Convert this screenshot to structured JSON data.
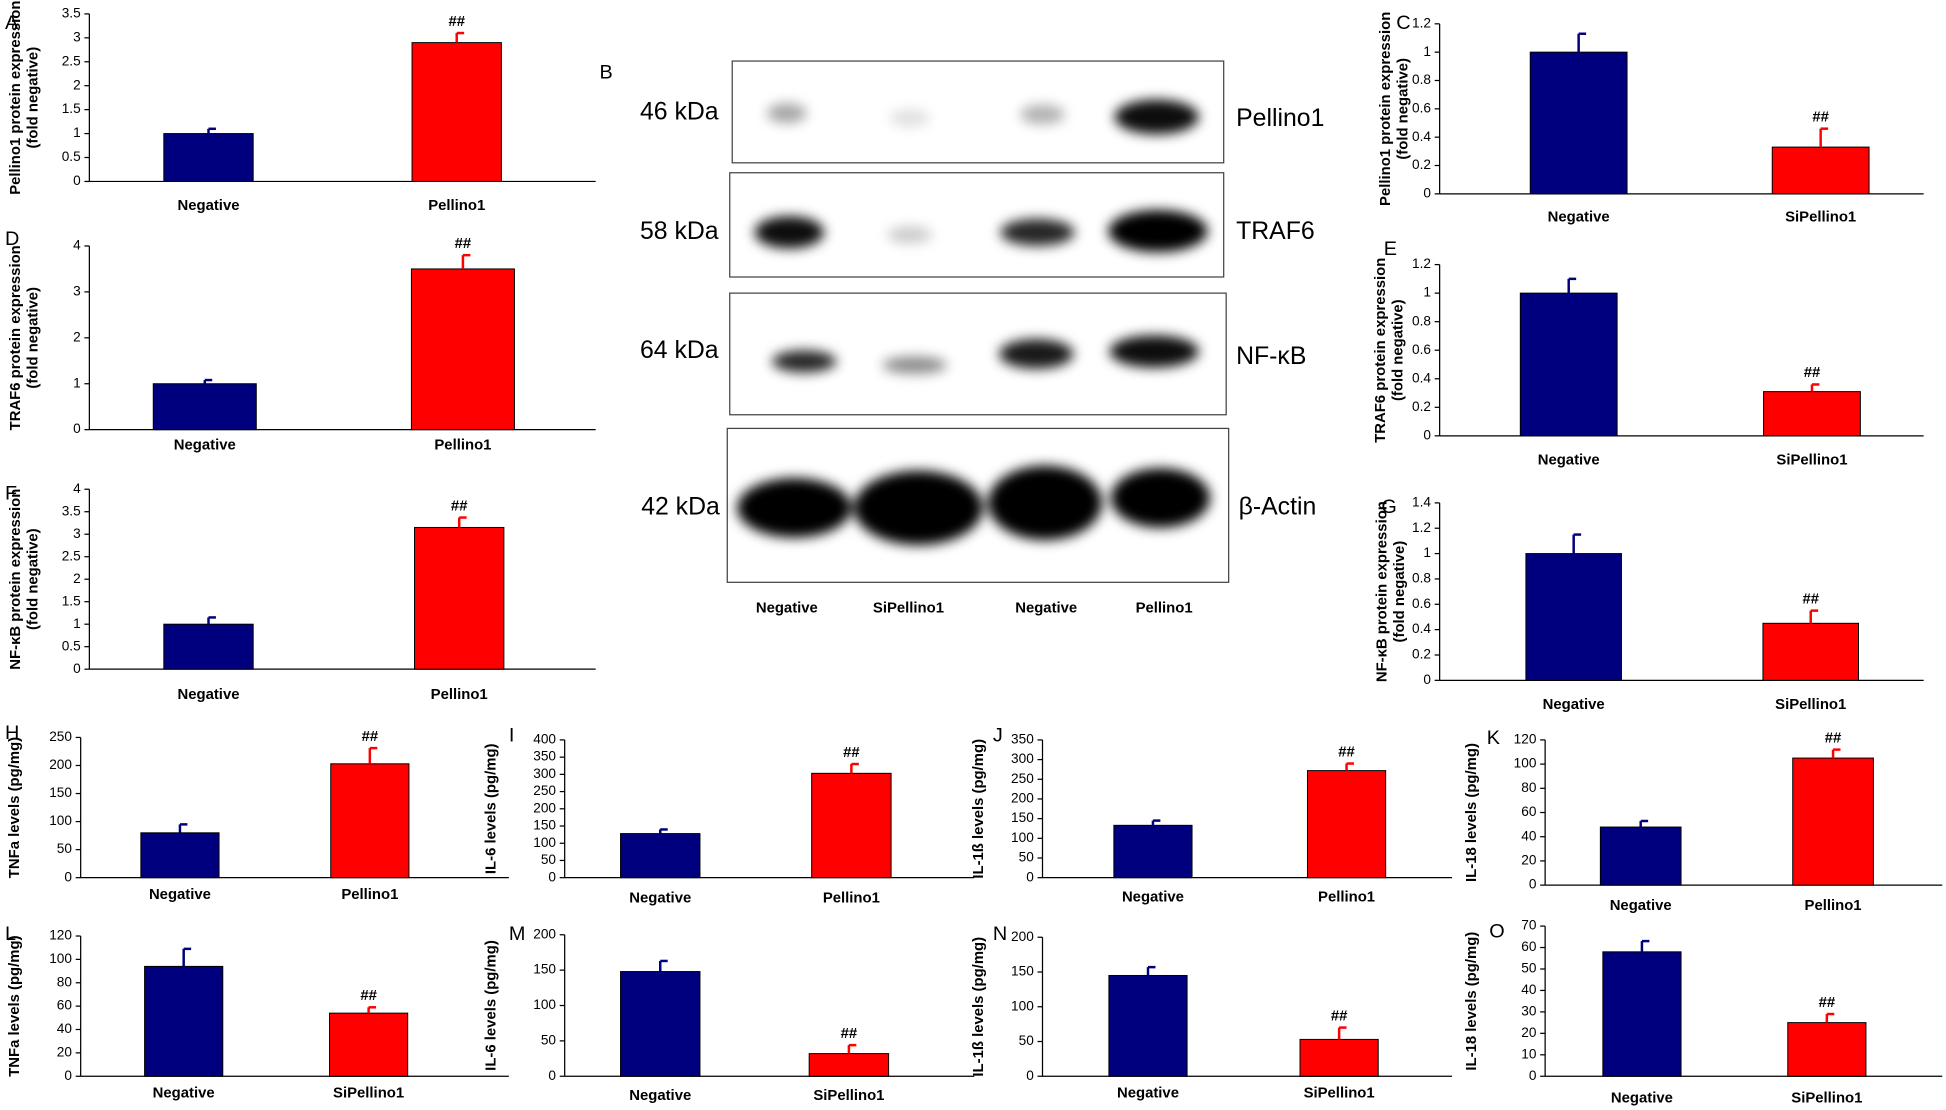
{
  "chart_data": [
    {
      "type": "bar",
      "panel": "A",
      "ylabel": [
        "Pellino1 protein expression",
        "(fold negative)"
      ],
      "categories": [
        "Negative",
        "Pellino1"
      ],
      "values": [
        1.0,
        2.9
      ],
      "errors": [
        0.1,
        0.2
      ],
      "colors": [
        "#00007f",
        "#ff0000"
      ],
      "annotation": "##",
      "ylim": [
        0,
        3.5
      ],
      "yticks": [
        0,
        0.5,
        1,
        1.5,
        2,
        2.5,
        3,
        3.5
      ]
    },
    {
      "type": "bar",
      "panel": "C",
      "ylabel": [
        "Pellino1 protein expression",
        "(fold negative)"
      ],
      "categories": [
        "Negative",
        "SiPellino1"
      ],
      "values": [
        1.0,
        0.33
      ],
      "errors": [
        0.13,
        0.13
      ],
      "colors": [
        "#00007f",
        "#ff0000"
      ],
      "annotation": "##",
      "ylim": [
        0,
        1.2
      ],
      "yticks": [
        0,
        0.2,
        0.4,
        0.6,
        0.8,
        1,
        1.2
      ]
    },
    {
      "type": "bar",
      "panel": "D",
      "ylabel": [
        "TRAF6 protein expression",
        "(fold negative)"
      ],
      "categories": [
        "Negative",
        "Pellino1"
      ],
      "values": [
        1.0,
        3.5
      ],
      "errors": [
        0.08,
        0.3
      ],
      "colors": [
        "#00007f",
        "#ff0000"
      ],
      "annotation": "##",
      "ylim": [
        0,
        4
      ],
      "yticks": [
        0,
        1,
        2,
        3,
        4
      ]
    },
    {
      "type": "bar",
      "panel": "E",
      "ylabel": [
        "TRAF6 protein expression",
        "(fold negative)"
      ],
      "categories": [
        "Negative",
        "SiPellino1"
      ],
      "values": [
        1.0,
        0.31
      ],
      "errors": [
        0.1,
        0.05
      ],
      "colors": [
        "#00007f",
        "#ff0000"
      ],
      "annotation": "##",
      "ylim": [
        0,
        1.2
      ],
      "yticks": [
        0,
        0.2,
        0.4,
        0.6,
        0.8,
        1,
        1.2
      ]
    },
    {
      "type": "bar",
      "panel": "F",
      "ylabel": [
        "NF-κB protein expression",
        "(fold negative)"
      ],
      "categories": [
        "Negative",
        "Pellino1"
      ],
      "values": [
        1.0,
        3.15
      ],
      "errors": [
        0.15,
        0.22
      ],
      "colors": [
        "#00007f",
        "#ff0000"
      ],
      "annotation": "##",
      "ylim": [
        0,
        4
      ],
      "yticks": [
        0,
        0.5,
        1,
        1.5,
        2,
        2.5,
        3,
        3.5,
        4
      ]
    },
    {
      "type": "bar",
      "panel": "G",
      "ylabel": [
        "NF-κB protein expression",
        "(fold negative)"
      ],
      "categories": [
        "Negative",
        "SiPellino1"
      ],
      "values": [
        1.0,
        0.45
      ],
      "errors": [
        0.15,
        0.1
      ],
      "colors": [
        "#00007f",
        "#ff0000"
      ],
      "annotation": "##",
      "ylim": [
        0,
        1.4
      ],
      "yticks": [
        0,
        0.2,
        0.4,
        0.6,
        0.8,
        1,
        1.2,
        1.4
      ]
    },
    {
      "type": "bar",
      "panel": "H",
      "ylabel": [
        "TNFa levels (pg/mg)"
      ],
      "categories": [
        "Negative",
        "Pellino1"
      ],
      "values": [
        80,
        203
      ],
      "errors": [
        15,
        28
      ],
      "colors": [
        "#00007f",
        "#ff0000"
      ],
      "annotation": "##",
      "ylim": [
        0,
        250
      ],
      "yticks": [
        0,
        50,
        100,
        150,
        200,
        250
      ]
    },
    {
      "type": "bar",
      "panel": "I",
      "ylabel": [
        "IL-6 levels (pg/mg)"
      ],
      "categories": [
        "Negative",
        "Pellino1"
      ],
      "values": [
        128,
        303
      ],
      "errors": [
        12,
        27
      ],
      "colors": [
        "#00007f",
        "#ff0000"
      ],
      "annotation": "##",
      "ylim": [
        0,
        400
      ],
      "yticks": [
        0,
        50,
        100,
        150,
        200,
        250,
        300,
        350,
        400
      ]
    },
    {
      "type": "bar",
      "panel": "J",
      "ylabel": [
        "IL-1ß levels (pg/mg)"
      ],
      "categories": [
        "Negative",
        "Pellino1"
      ],
      "values": [
        133,
        272
      ],
      "errors": [
        12,
        18
      ],
      "colors": [
        "#00007f",
        "#ff0000"
      ],
      "annotation": "##",
      "ylim": [
        0,
        350
      ],
      "yticks": [
        0,
        50,
        100,
        150,
        200,
        250,
        300,
        350
      ]
    },
    {
      "type": "bar",
      "panel": "K",
      "ylabel": [
        "IL-18 levels (pg/mg)"
      ],
      "categories": [
        "Negative",
        "Pellino1"
      ],
      "values": [
        48,
        105
      ],
      "errors": [
        5,
        7
      ],
      "colors": [
        "#00007f",
        "#ff0000"
      ],
      "annotation": "##",
      "ylim": [
        0,
        120
      ],
      "yticks": [
        0,
        20,
        40,
        60,
        80,
        100,
        120
      ]
    },
    {
      "type": "bar",
      "panel": "L",
      "ylabel": [
        "TNFa levels (pg/mg)"
      ],
      "categories": [
        "Negative",
        "SiPellino1"
      ],
      "values": [
        94,
        54
      ],
      "errors": [
        15,
        5
      ],
      "colors": [
        "#00007f",
        "#ff0000"
      ],
      "annotation": "##",
      "ylim": [
        0,
        120
      ],
      "yticks": [
        0,
        20,
        40,
        60,
        80,
        100,
        120
      ]
    },
    {
      "type": "bar",
      "panel": "M",
      "ylabel": [
        "IL-6 levels (pg/mg)"
      ],
      "categories": [
        "Negative",
        "SiPellino1"
      ],
      "values": [
        148,
        32
      ],
      "errors": [
        15,
        12
      ],
      "colors": [
        "#00007f",
        "#ff0000"
      ],
      "annotation": "##",
      "ylim": [
        0,
        200
      ],
      "yticks": [
        0,
        50,
        100,
        150,
        200
      ]
    },
    {
      "type": "bar",
      "panel": "N",
      "ylabel": [
        "IL-1ß levels (pg/mg)"
      ],
      "categories": [
        "Negative",
        "SiPellino1"
      ],
      "values": [
        145,
        53
      ],
      "errors": [
        12,
        17
      ],
      "colors": [
        "#00007f",
        "#ff0000"
      ],
      "annotation": "##",
      "ylim": [
        0,
        200
      ],
      "yticks": [
        0,
        50,
        100,
        150,
        200
      ]
    },
    {
      "type": "bar",
      "panel": "O",
      "ylabel": [
        "IL-18 levels (pg/mg)"
      ],
      "categories": [
        "Negative",
        "SiPellino1"
      ],
      "values": [
        58,
        25
      ],
      "errors": [
        5,
        4
      ],
      "colors": [
        "#00007f",
        "#ff0000"
      ],
      "annotation": "##",
      "ylim": [
        0,
        70
      ],
      "yticks": [
        0,
        10,
        20,
        30,
        40,
        50,
        60,
        70
      ]
    }
  ],
  "blot": {
    "panel": "B",
    "sizes": [
      "46 kDa",
      "58 kDa",
      "64 kDa",
      "42 kDa"
    ],
    "proteins": [
      "Pellino1",
      "TRAF6",
      "NF-κB",
      "β-Actin"
    ],
    "lanes": [
      "Negative",
      "SiPellino1",
      "Negative",
      "Pellino1"
    ]
  }
}
